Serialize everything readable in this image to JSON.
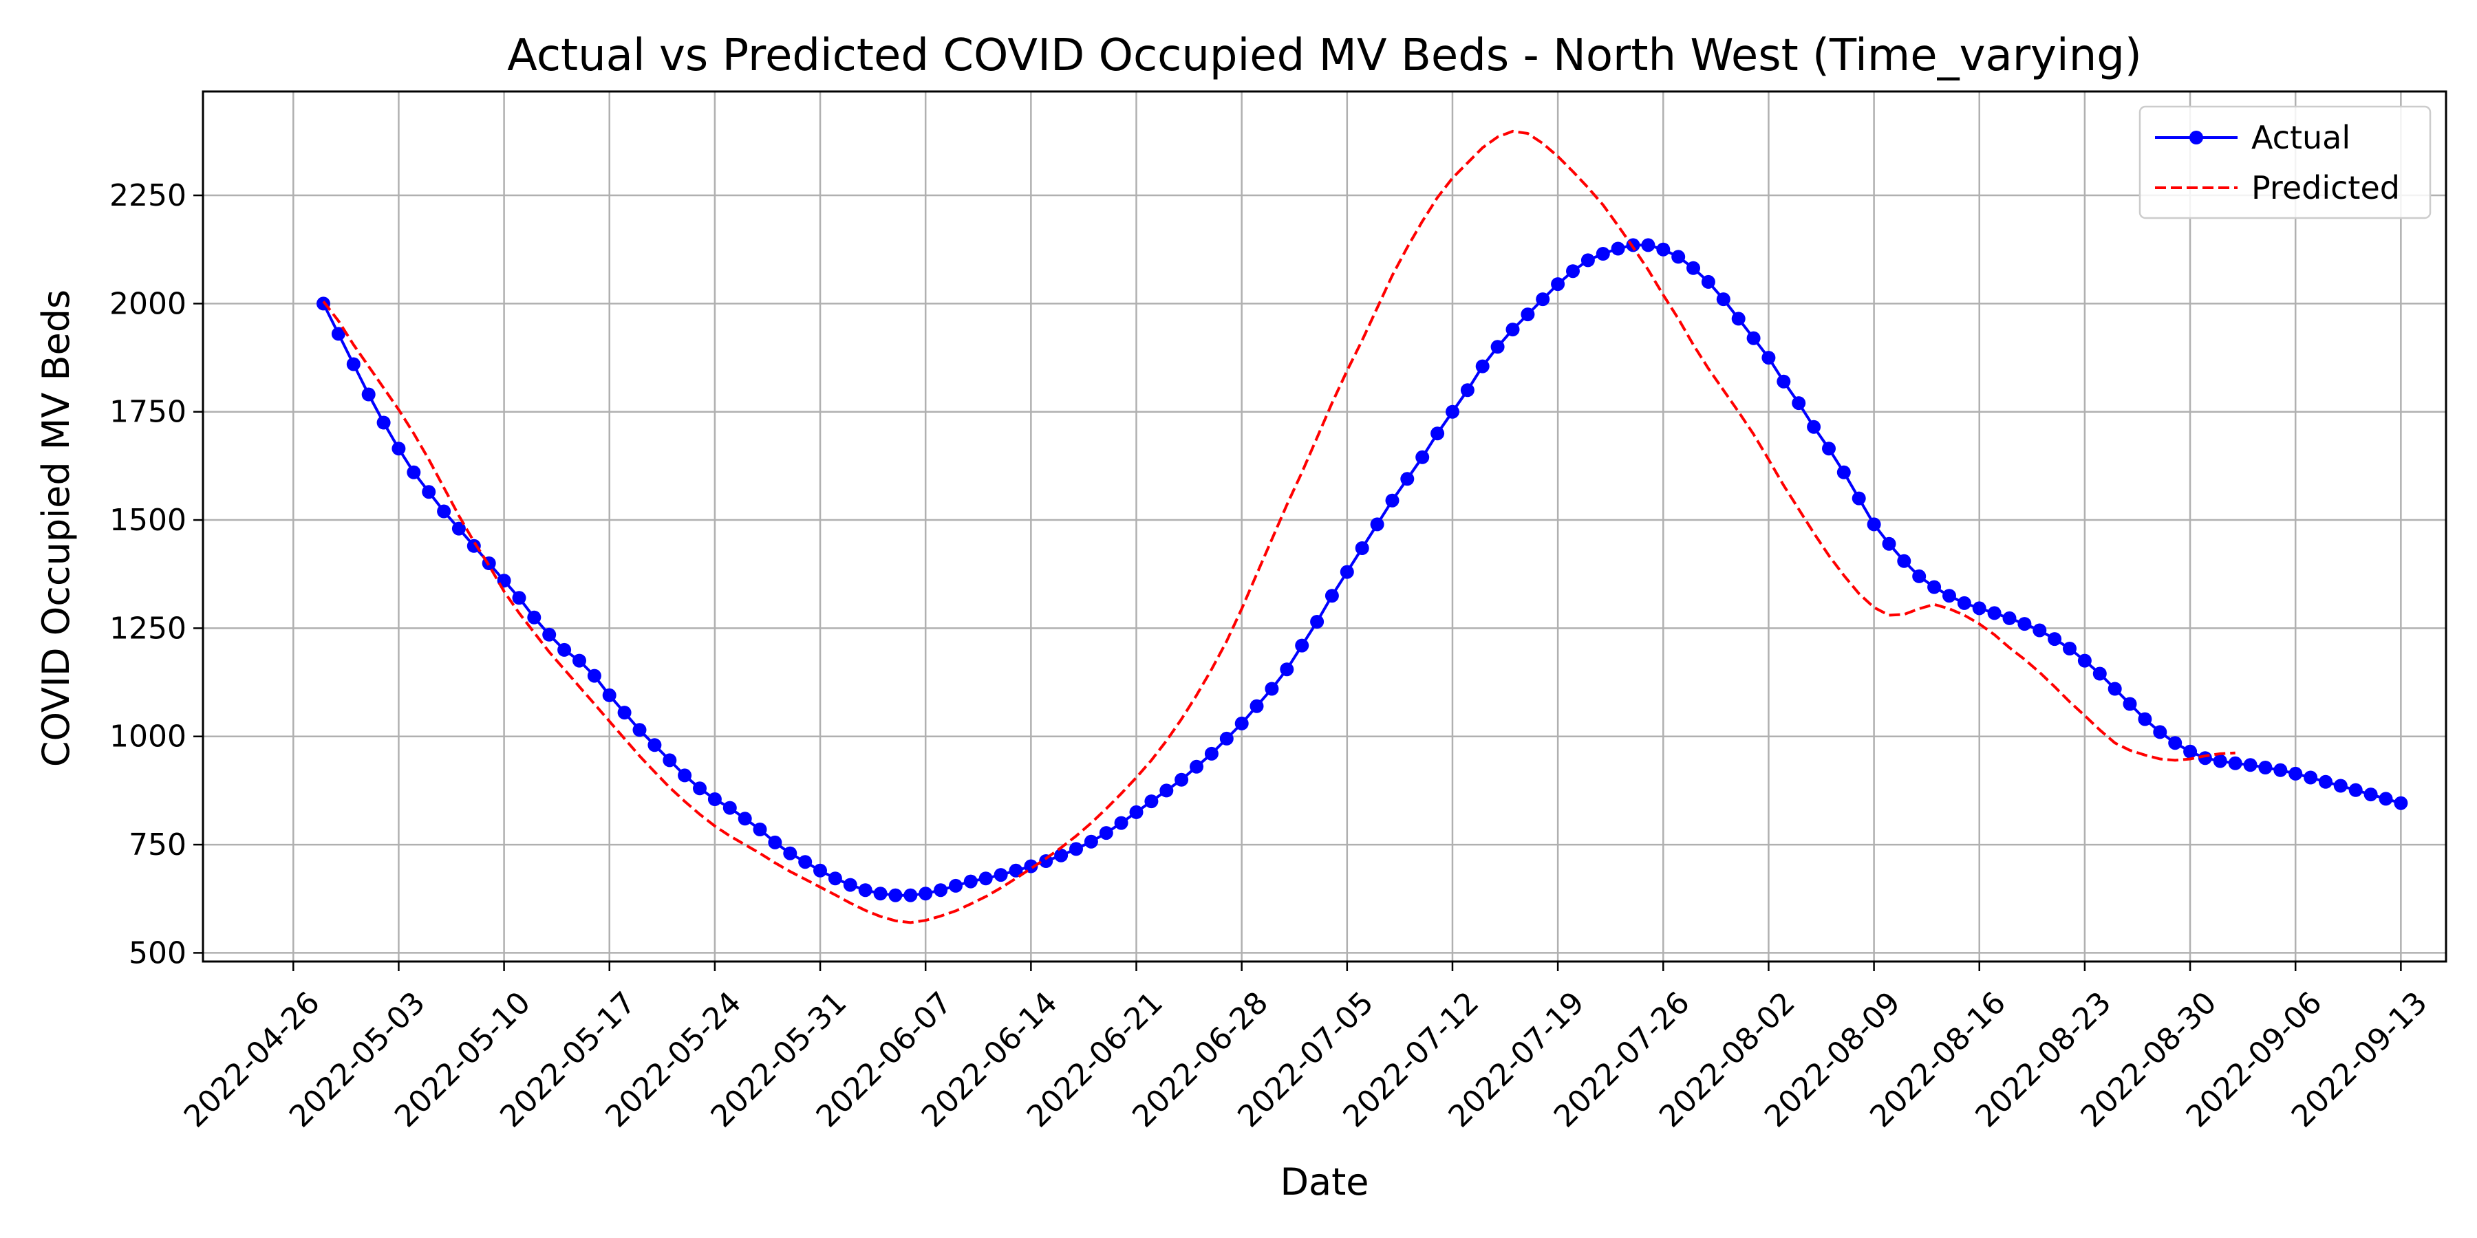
{
  "chart_data": {
    "type": "line",
    "title": "Actual vs Predicted COVID Occupied MV Beds - North West (Time_varying)",
    "xlabel": "Date",
    "ylabel": "COVID Occupied MV Beds",
    "xlim": [
      "2022-04-20",
      "2022-09-16"
    ],
    "ylim": [
      480,
      2490
    ],
    "x_ticks": [
      "2022-04-26",
      "2022-05-03",
      "2022-05-10",
      "2022-05-17",
      "2022-05-24",
      "2022-05-31",
      "2022-06-07",
      "2022-06-14",
      "2022-06-21",
      "2022-06-28",
      "2022-07-05",
      "2022-07-12",
      "2022-07-19",
      "2022-07-26",
      "2022-08-02",
      "2022-08-09",
      "2022-08-16",
      "2022-08-23",
      "2022-08-30",
      "2022-09-06",
      "2022-09-13"
    ],
    "y_ticks": [
      500,
      750,
      1000,
      1250,
      1500,
      1750,
      2000,
      2250
    ],
    "grid": true,
    "legend_position": "top-right",
    "start_date": "2022-04-28",
    "series": [
      {
        "name": "Actual",
        "color": "#0000ff",
        "style": "solid-with-dots",
        "values": [
          2000,
          1930,
          1860,
          1790,
          1725,
          1665,
          1610,
          1565,
          1520,
          1480,
          1440,
          1400,
          1360,
          1320,
          1275,
          1235,
          1200,
          1175,
          1140,
          1095,
          1055,
          1015,
          980,
          945,
          910,
          880,
          855,
          835,
          810,
          785,
          755,
          730,
          710,
          690,
          672,
          657,
          645,
          637,
          633,
          633,
          637,
          645,
          655,
          665,
          672,
          680,
          690,
          700,
          712,
          725,
          740,
          757,
          777,
          800,
          825,
          850,
          875,
          900,
          930,
          960,
          995,
          1030,
          1070,
          1110,
          1155,
          1210,
          1265,
          1325,
          1380,
          1435,
          1490,
          1545,
          1595,
          1645,
          1700,
          1750,
          1800,
          1855,
          1900,
          1940,
          1975,
          2010,
          2045,
          2075,
          2100,
          2115,
          2127,
          2135,
          2135,
          2125,
          2108,
          2082,
          2050,
          2010,
          1965,
          1920,
          1875,
          1820,
          1770,
          1715,
          1665,
          1610,
          1550,
          1490,
          1445,
          1405,
          1370,
          1345,
          1325,
          1308,
          1296,
          1285,
          1273,
          1260,
          1245,
          1225,
          1203,
          1175,
          1145,
          1110,
          1075,
          1040,
          1010,
          985,
          965,
          950,
          943,
          938,
          934,
          928,
          922,
          914,
          905,
          895,
          886,
          876,
          866,
          856,
          846
        ]
      },
      {
        "name": "Predicted",
        "color": "#ff0000",
        "style": "dashed",
        "values": [
          2005,
          1960,
          1905,
          1855,
          1805,
          1755,
          1700,
          1640,
          1575,
          1510,
          1450,
          1395,
          1335,
          1285,
          1240,
          1195,
          1155,
          1115,
          1075,
          1035,
          995,
          955,
          918,
          882,
          850,
          820,
          793,
          770,
          750,
          730,
          708,
          688,
          670,
          652,
          634,
          615,
          598,
          584,
          574,
          570,
          575,
          585,
          597,
          613,
          630,
          650,
          672,
          695,
          718,
          743,
          770,
          800,
          833,
          868,
          905,
          945,
          990,
          1040,
          1095,
          1155,
          1220,
          1295,
          1375,
          1455,
          1535,
          1610,
          1690,
          1770,
          1845,
          1915,
          1990,
          2065,
          2130,
          2190,
          2245,
          2290,
          2325,
          2360,
          2385,
          2398,
          2393,
          2370,
          2340,
          2305,
          2268,
          2228,
          2180,
          2130,
          2078,
          2020,
          1965,
          1905,
          1850,
          1800,
          1750,
          1698,
          1640,
          1580,
          1525,
          1470,
          1418,
          1372,
          1330,
          1298,
          1280,
          1282,
          1295,
          1305,
          1295,
          1280,
          1260,
          1235,
          1205,
          1178,
          1148,
          1115,
          1080,
          1048,
          1015,
          985,
          968,
          957,
          948,
          945,
          948,
          955,
          960,
          962
        ]
      }
    ]
  }
}
